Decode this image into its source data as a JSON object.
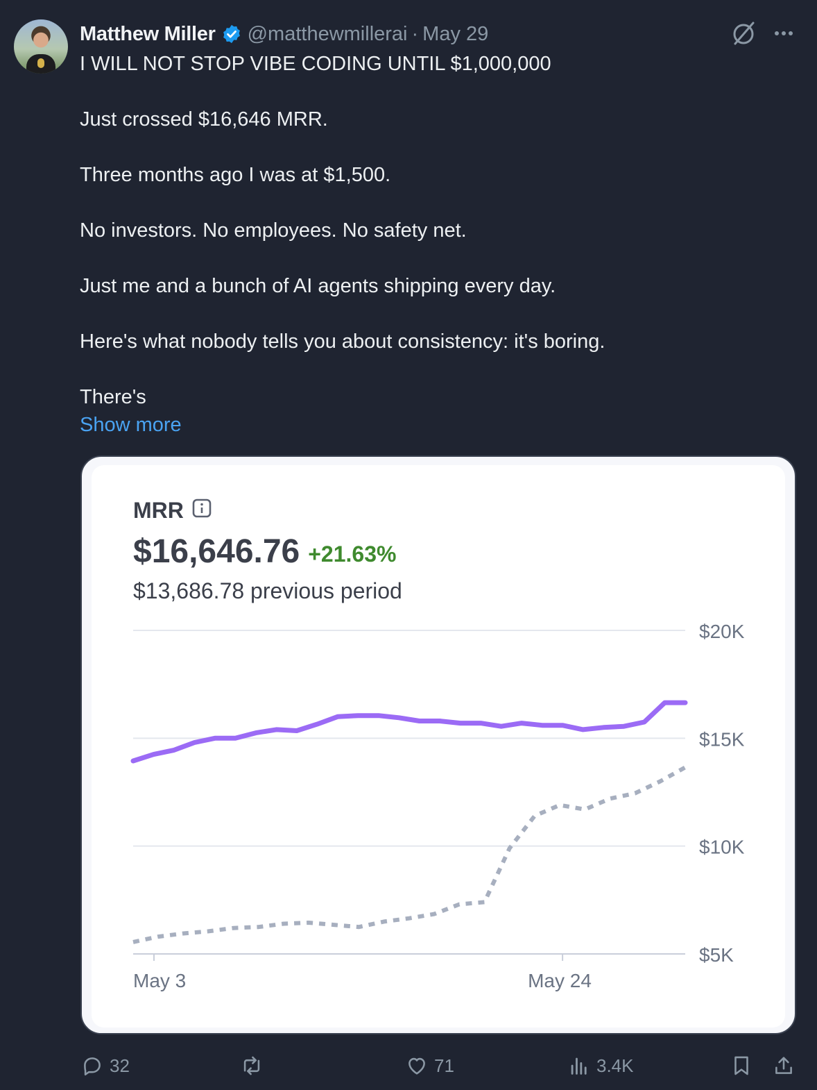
{
  "post": {
    "author_name": "Matthew Miller",
    "handle": "@matthewmillerai",
    "separator": "·",
    "date": "May 29",
    "lines": [
      "I WILL NOT STOP VIBE CODING UNTIL $1,000,000",
      "",
      "Just crossed $16,646 MRR.",
      "",
      "Three months ago I was at $1,500.",
      "",
      "No investors. No employees. No safety net.",
      "",
      "Just me and a bunch of AI agents shipping every day.",
      "",
      "Here's what nobody tells you about consistency: it's boring.",
      "",
      "There's"
    ],
    "show_more_label": "Show more"
  },
  "card": {
    "metric_label": "MRR",
    "value": "$16,646.76",
    "change": "+21.63%",
    "previous": "$13,686.78 previous period",
    "colors": {
      "current_line": "#9b6bf5",
      "previous_line": "#a7afbf",
      "change_text": "#3f8a2e",
      "grid": "#e4e7ee"
    }
  },
  "chart_data": {
    "type": "line",
    "x_ticks": [
      "May 3",
      "May 24"
    ],
    "y_ticks": [
      "$20K",
      "$15K",
      "$10K",
      "$5K"
    ],
    "y_tick_values": [
      20000,
      15000,
      10000,
      5000
    ],
    "ylim": [
      5000,
      20000
    ],
    "grid": true,
    "series": [
      {
        "style": "solid",
        "values": [
          13950,
          14250,
          14450,
          14800,
          15000,
          15000,
          15250,
          15400,
          15350,
          15650,
          16000,
          16050,
          16050,
          15950,
          15800,
          15800,
          15700,
          15700,
          15550,
          15700,
          15600,
          15600,
          15400,
          15500,
          15550,
          15750,
          16650,
          16650
        ]
      },
      {
        "style": "dotted",
        "values": [
          5550,
          5800,
          5950,
          6050,
          6200,
          6250,
          6400,
          6450,
          6350,
          6250,
          6500,
          6650,
          6850,
          7300,
          7400,
          9900,
          11400,
          11900,
          11700,
          12200,
          12450,
          13000,
          13650
        ]
      }
    ]
  },
  "actions": {
    "replies": "32",
    "reposts": "",
    "likes": "71",
    "views": "3.4K"
  },
  "icons": [
    "verified-badge-icon",
    "grok-icon",
    "more-icon",
    "info-icon",
    "reply-icon",
    "repost-icon",
    "like-icon",
    "views-icon",
    "bookmark-icon",
    "share-icon"
  ]
}
